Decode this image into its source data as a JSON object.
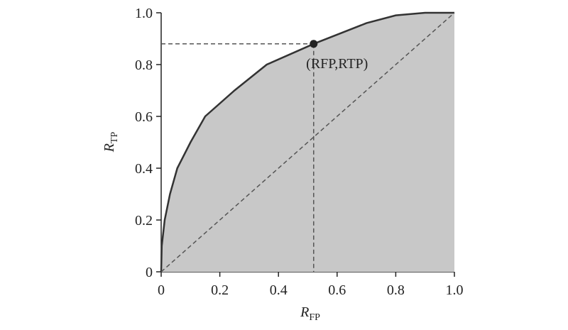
{
  "chart_data": {
    "type": "roc",
    "xlabel": {
      "main": "R",
      "sub": "FP"
    },
    "ylabel": {
      "main": "R",
      "sub": "TP"
    },
    "xlim": [
      0,
      1
    ],
    "ylim": [
      0,
      1
    ],
    "xticks": [
      0,
      0.2,
      0.4,
      0.6,
      0.8,
      {
        "value": 1,
        "label": "1.0"
      }
    ],
    "yticks": [
      0,
      0.2,
      0.4,
      0.6,
      0.8,
      {
        "value": 1,
        "label": "1.0"
      }
    ],
    "series": [
      {
        "x": [
          0,
          0.002,
          0.012,
          0.03,
          0.055,
          0.1,
          0.15,
          0.25,
          0.36,
          0.52,
          0.7,
          0.8,
          0.9,
          1
        ],
        "values": [
          0,
          0.1,
          0.2,
          0.3,
          0.4,
          0.5,
          0.6,
          0.7,
          0.8,
          0.88,
          0.96,
          0.99,
          1,
          1
        ],
        "color": "#333333",
        "fill": "#c8c8c8"
      },
      {
        "x": [
          0,
          1
        ],
        "values": [
          0,
          1
        ],
        "color": "#555555",
        "dashed": true
      }
    ],
    "point": {
      "x": 0.52,
      "y": 0.88,
      "label": "(RFP,RTP)",
      "color": "#222222"
    }
  }
}
